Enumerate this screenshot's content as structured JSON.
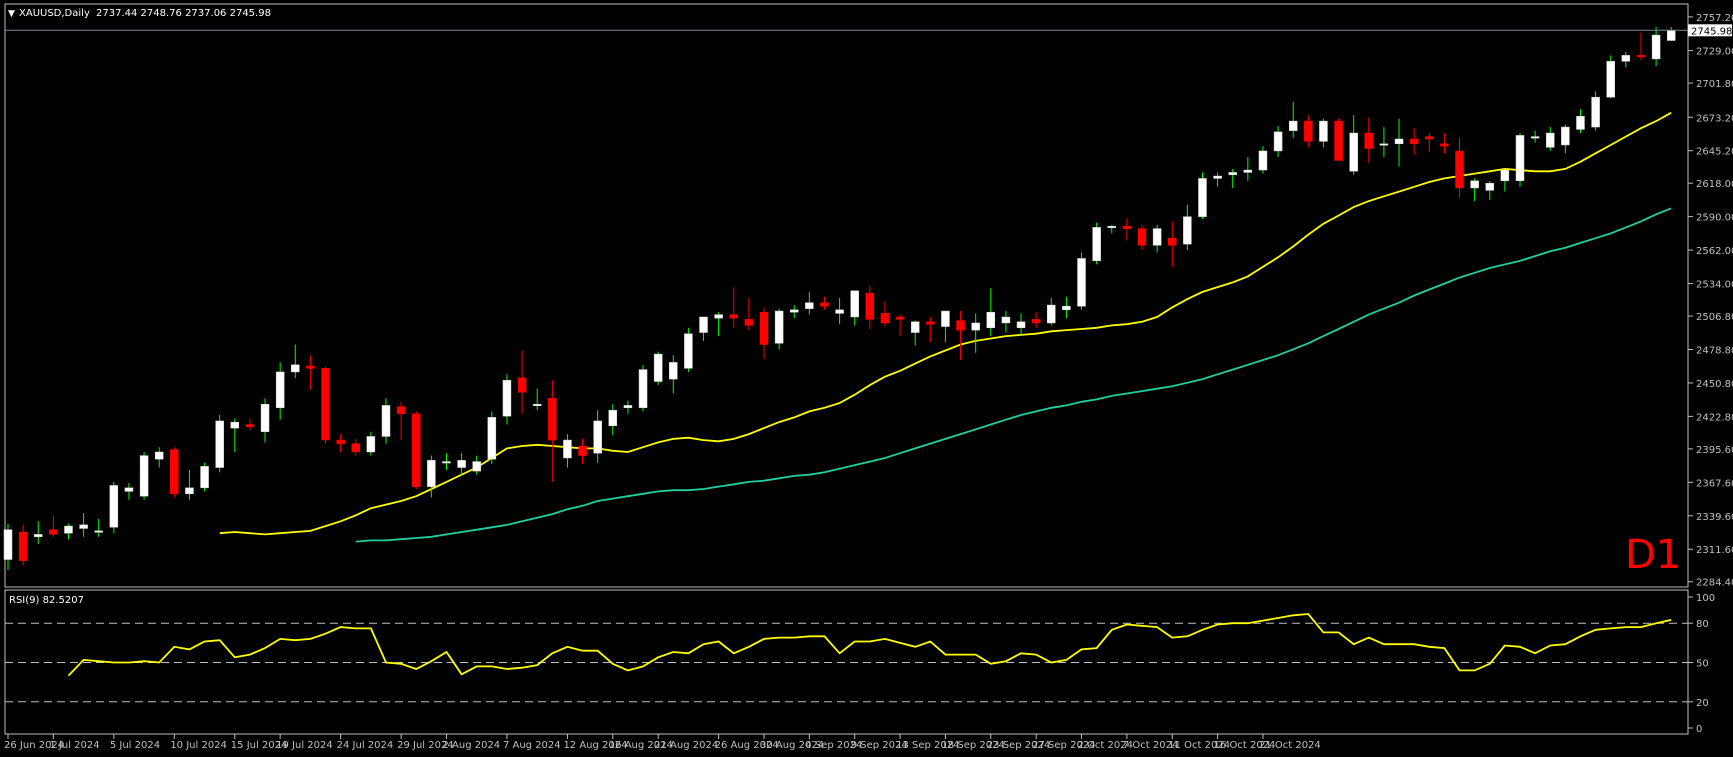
{
  "header": {
    "symbol": "XAUUSD,Daily",
    "ohlc": "2737.44 2748.76 2737.06 2745.98"
  },
  "timeframe_badge": "D1",
  "colors": {
    "background": "#000000",
    "grid": "#1a1a1a",
    "axis": "#c0c0c0",
    "bull_candle": "#ffffff",
    "bear_candle": "#ff0000",
    "bull_wick": "#00ff00",
    "bear_wick": "#ff0000",
    "ma_fast": "#ffff00",
    "ma_slow": "#20d0a0",
    "rsi_line": "#ffff00",
    "badge": "#ff0000"
  },
  "price_axis": {
    "ticks": [
      "2757.20",
      "2729.00",
      "2701.80",
      "2673.20",
      "2645.20",
      "2618.00",
      "2590.00",
      "2562.00",
      "2534.00",
      "2506.80",
      "2478.80",
      "2450.80",
      "2422.80",
      "2395.60",
      "2367.60",
      "2339.60",
      "2311.60",
      "2284.40"
    ],
    "current_label": "2745.98",
    "current_value": 2745.98
  },
  "rsi": {
    "label": "RSI(9) 82.5207",
    "ticks": [
      "100",
      "80",
      "50",
      "20",
      "0"
    ],
    "levels": [
      80,
      50,
      20
    ]
  },
  "time_axis": {
    "labels": [
      "26 Jun 2024",
      "1 Jul 2024",
      "5 Jul 2024",
      "10 Jul 2024",
      "15 Jul 2024",
      "19 Jul 2024",
      "24 Jul 2024",
      "29 Jul 2024",
      "2 Aug 2024",
      "7 Aug 2024",
      "12 Aug 2024",
      "16 Aug 2024",
      "21 Aug 2024",
      "26 Aug 2024",
      "30 Aug 2024",
      "4 Sep 2024",
      "9 Sep 2024",
      "13 Sep 2024",
      "18 Sep 2024",
      "23 Sep 2024",
      "27 Sep 2024",
      "2 Oct 2024",
      "7 Oct 2024",
      "11 Oct 2024",
      "16 Oct 2024",
      "21 Oct 2024"
    ],
    "label_bar_index": [
      0,
      3,
      7,
      11,
      15,
      18,
      22,
      26,
      29,
      33,
      37,
      40,
      43,
      47,
      50,
      53,
      56,
      59,
      62,
      65,
      68,
      71,
      74,
      77,
      80,
      83
    ]
  },
  "chart_data": {
    "type": "candlestick",
    "symbol": "XAUUSD",
    "timeframe": "Daily",
    "ylim": [
      2280,
      2768
    ],
    "candles": [
      {
        "o": 2303,
        "h": 2333,
        "l": 2294,
        "c": 2328
      },
      {
        "o": 2326,
        "h": 2332,
        "l": 2298,
        "c": 2302
      },
      {
        "o": 2322,
        "h": 2335,
        "l": 2316,
        "c": 2324
      },
      {
        "o": 2328,
        "h": 2340,
        "l": 2322,
        "c": 2324
      },
      {
        "o": 2325,
        "h": 2333,
        "l": 2320,
        "c": 2331
      },
      {
        "o": 2329,
        "h": 2342,
        "l": 2322,
        "c": 2332
      },
      {
        "o": 2326,
        "h": 2337,
        "l": 2322,
        "c": 2327
      },
      {
        "o": 2330,
        "h": 2368,
        "l": 2325,
        "c": 2365
      },
      {
        "o": 2360,
        "h": 2367,
        "l": 2353,
        "c": 2363
      },
      {
        "o": 2356,
        "h": 2393,
        "l": 2353,
        "c": 2390
      },
      {
        "o": 2387,
        "h": 2397,
        "l": 2380,
        "c": 2393
      },
      {
        "o": 2395,
        "h": 2397,
        "l": 2355,
        "c": 2358
      },
      {
        "o": 2358,
        "h": 2378,
        "l": 2353,
        "c": 2363
      },
      {
        "o": 2363,
        "h": 2384,
        "l": 2360,
        "c": 2381
      },
      {
        "o": 2380,
        "h": 2424,
        "l": 2376,
        "c": 2419
      },
      {
        "o": 2413,
        "h": 2421,
        "l": 2393,
        "c": 2418
      },
      {
        "o": 2416,
        "h": 2421,
        "l": 2411,
        "c": 2414
      },
      {
        "o": 2410,
        "h": 2438,
        "l": 2401,
        "c": 2433
      },
      {
        "o": 2430,
        "h": 2468,
        "l": 2420,
        "c": 2460
      },
      {
        "o": 2460,
        "h": 2483,
        "l": 2455,
        "c": 2466
      },
      {
        "o": 2465,
        "h": 2474,
        "l": 2445,
        "c": 2463
      },
      {
        "o": 2463,
        "h": 2464,
        "l": 2400,
        "c": 2403
      },
      {
        "o": 2403,
        "h": 2408,
        "l": 2393,
        "c": 2400
      },
      {
        "o": 2400,
        "h": 2404,
        "l": 2390,
        "c": 2393
      },
      {
        "o": 2393,
        "h": 2410,
        "l": 2390,
        "c": 2406
      },
      {
        "o": 2406,
        "h": 2438,
        "l": 2400,
        "c": 2432
      },
      {
        "o": 2431,
        "h": 2435,
        "l": 2403,
        "c": 2425
      },
      {
        "o": 2425,
        "h": 2427,
        "l": 2362,
        "c": 2364
      },
      {
        "o": 2364,
        "h": 2390,
        "l": 2355,
        "c": 2386
      },
      {
        "o": 2385,
        "h": 2392,
        "l": 2378,
        "c": 2385
      },
      {
        "o": 2380,
        "h": 2392,
        "l": 2373,
        "c": 2386
      },
      {
        "o": 2377,
        "h": 2390,
        "l": 2374,
        "c": 2385
      },
      {
        "o": 2387,
        "h": 2427,
        "l": 2383,
        "c": 2422
      },
      {
        "o": 2423,
        "h": 2458,
        "l": 2416,
        "c": 2453
      },
      {
        "o": 2455,
        "h": 2478,
        "l": 2425,
        "c": 2443
      },
      {
        "o": 2432,
        "h": 2446,
        "l": 2428,
        "c": 2433
      },
      {
        "o": 2438,
        "h": 2453,
        "l": 2368,
        "c": 2403
      },
      {
        "o": 2388,
        "h": 2408,
        "l": 2380,
        "c": 2403
      },
      {
        "o": 2398,
        "h": 2404,
        "l": 2383,
        "c": 2390
      },
      {
        "o": 2392,
        "h": 2428,
        "l": 2384,
        "c": 2419
      },
      {
        "o": 2415,
        "h": 2433,
        "l": 2407,
        "c": 2428
      },
      {
        "o": 2430,
        "h": 2436,
        "l": 2425,
        "c": 2432
      },
      {
        "o": 2430,
        "h": 2466,
        "l": 2427,
        "c": 2462
      },
      {
        "o": 2452,
        "h": 2477,
        "l": 2449,
        "c": 2475
      },
      {
        "o": 2454,
        "h": 2474,
        "l": 2442,
        "c": 2468
      },
      {
        "o": 2463,
        "h": 2497,
        "l": 2460,
        "c": 2492
      },
      {
        "o": 2493,
        "h": 2506,
        "l": 2486,
        "c": 2506
      },
      {
        "o": 2505,
        "h": 2510,
        "l": 2490,
        "c": 2508
      },
      {
        "o": 2508,
        "h": 2531,
        "l": 2497,
        "c": 2505
      },
      {
        "o": 2504,
        "h": 2522,
        "l": 2495,
        "c": 2499
      },
      {
        "o": 2510,
        "h": 2514,
        "l": 2471,
        "c": 2483
      },
      {
        "o": 2484,
        "h": 2513,
        "l": 2479,
        "c": 2511
      },
      {
        "o": 2510,
        "h": 2516,
        "l": 2505,
        "c": 2512
      },
      {
        "o": 2513,
        "h": 2527,
        "l": 2508,
        "c": 2518
      },
      {
        "o": 2518,
        "h": 2523,
        "l": 2512,
        "c": 2515
      },
      {
        "o": 2509,
        "h": 2522,
        "l": 2500,
        "c": 2512
      },
      {
        "o": 2506,
        "h": 2524,
        "l": 2499,
        "c": 2528
      },
      {
        "o": 2526,
        "h": 2532,
        "l": 2496,
        "c": 2504
      },
      {
        "o": 2509,
        "h": 2519,
        "l": 2498,
        "c": 2501
      },
      {
        "o": 2506,
        "h": 2508,
        "l": 2490,
        "c": 2504
      },
      {
        "o": 2493,
        "h": 2503,
        "l": 2482,
        "c": 2502
      },
      {
        "o": 2502,
        "h": 2506,
        "l": 2485,
        "c": 2500
      },
      {
        "o": 2498,
        "h": 2511,
        "l": 2485,
        "c": 2511
      },
      {
        "o": 2503,
        "h": 2511,
        "l": 2470,
        "c": 2495
      },
      {
        "o": 2495,
        "h": 2509,
        "l": 2476,
        "c": 2501
      },
      {
        "o": 2497,
        "h": 2530,
        "l": 2490,
        "c": 2510
      },
      {
        "o": 2501,
        "h": 2511,
        "l": 2493,
        "c": 2506
      },
      {
        "o": 2497,
        "h": 2509,
        "l": 2491,
        "c": 2502
      },
      {
        "o": 2504,
        "h": 2510,
        "l": 2497,
        "c": 2501
      },
      {
        "o": 2501,
        "h": 2522,
        "l": 2499,
        "c": 2516
      },
      {
        "o": 2512,
        "h": 2523,
        "l": 2505,
        "c": 2515
      },
      {
        "o": 2515,
        "h": 2560,
        "l": 2512,
        "c": 2555
      },
      {
        "o": 2553,
        "h": 2585,
        "l": 2550,
        "c": 2581
      },
      {
        "o": 2581,
        "h": 2583,
        "l": 2576,
        "c": 2582
      },
      {
        "o": 2582,
        "h": 2589,
        "l": 2570,
        "c": 2580
      },
      {
        "o": 2580,
        "h": 2583,
        "l": 2562,
        "c": 2566
      },
      {
        "o": 2566,
        "h": 2583,
        "l": 2560,
        "c": 2580
      },
      {
        "o": 2572,
        "h": 2586,
        "l": 2548,
        "c": 2566
      },
      {
        "o": 2567,
        "h": 2600,
        "l": 2562,
        "c": 2590
      },
      {
        "o": 2590,
        "h": 2627,
        "l": 2588,
        "c": 2622
      },
      {
        "o": 2622,
        "h": 2627,
        "l": 2615,
        "c": 2624
      },
      {
        "o": 2625,
        "h": 2630,
        "l": 2614,
        "c": 2627
      },
      {
        "o": 2627,
        "h": 2640,
        "l": 2620,
        "c": 2629
      },
      {
        "o": 2629,
        "h": 2649,
        "l": 2626,
        "c": 2645
      },
      {
        "o": 2645,
        "h": 2666,
        "l": 2640,
        "c": 2661
      },
      {
        "o": 2662,
        "h": 2686,
        "l": 2656,
        "c": 2670
      },
      {
        "o": 2670,
        "h": 2675,
        "l": 2648,
        "c": 2653
      },
      {
        "o": 2653,
        "h": 2672,
        "l": 2648,
        "c": 2670
      },
      {
        "o": 2670,
        "h": 2672,
        "l": 2638,
        "c": 2637
      },
      {
        "o": 2628,
        "h": 2675,
        "l": 2625,
        "c": 2660
      },
      {
        "o": 2660,
        "h": 2673,
        "l": 2635,
        "c": 2647
      },
      {
        "o": 2650,
        "h": 2665,
        "l": 2640,
        "c": 2651
      },
      {
        "o": 2651,
        "h": 2672,
        "l": 2632,
        "c": 2655
      },
      {
        "o": 2655,
        "h": 2664,
        "l": 2642,
        "c": 2651
      },
      {
        "o": 2657,
        "h": 2660,
        "l": 2644,
        "c": 2655
      },
      {
        "o": 2651,
        "h": 2660,
        "l": 2643,
        "c": 2649
      },
      {
        "o": 2645,
        "h": 2656,
        "l": 2606,
        "c": 2614
      },
      {
        "o": 2614,
        "h": 2622,
        "l": 2603,
        "c": 2620
      },
      {
        "o": 2612,
        "h": 2620,
        "l": 2604,
        "c": 2618
      },
      {
        "o": 2620,
        "h": 2628,
        "l": 2611,
        "c": 2629
      },
      {
        "o": 2620,
        "h": 2660,
        "l": 2615,
        "c": 2658
      },
      {
        "o": 2657,
        "h": 2662,
        "l": 2652,
        "c": 2657
      },
      {
        "o": 2648,
        "h": 2665,
        "l": 2645,
        "c": 2660
      },
      {
        "o": 2650,
        "h": 2667,
        "l": 2643,
        "c": 2665
      },
      {
        "o": 2663,
        "h": 2680,
        "l": 2660,
        "c": 2674
      },
      {
        "o": 2665,
        "h": 2695,
        "l": 2662,
        "c": 2690
      },
      {
        "o": 2690,
        "h": 2725,
        "l": 2689,
        "c": 2720
      },
      {
        "o": 2720,
        "h": 2728,
        "l": 2715,
        "c": 2725
      },
      {
        "o": 2725,
        "h": 2744,
        "l": 2721,
        "c": 2724
      },
      {
        "o": 2722,
        "h": 2749,
        "l": 2716,
        "c": 2742
      },
      {
        "o": 2737.44,
        "h": 2748.76,
        "l": 2737.06,
        "c": 2745.98
      }
    ],
    "ma_fast": [
      2325,
      2326,
      2325,
      2324,
      2325,
      2326,
      2327,
      2331,
      2335,
      2340,
      2346,
      2349,
      2352,
      2356,
      2362,
      2368,
      2374,
      2380,
      2388,
      2396,
      2398,
      2399,
      2398,
      2397,
      2396,
      2396,
      2394,
      2393,
      2397,
      2401,
      2404,
      2405,
      2403,
      2402,
      2404,
      2408,
      2413,
      2418,
      2422,
      2427,
      2430,
      2434,
      2441,
      2449,
      2456,
      2461,
      2467,
      2473,
      2478,
      2483,
      2486,
      2488,
      2490,
      2491,
      2492,
      2494,
      2495,
      2496,
      2497,
      2499,
      2500,
      2502,
      2506,
      2514,
      2521,
      2527,
      2531,
      2535,
      2540,
      2548,
      2556,
      2565,
      2575,
      2584,
      2591,
      2598,
      2603,
      2607,
      2611,
      2615,
      2619,
      2622,
      2624,
      2626,
      2628,
      2630,
      2629,
      2628,
      2628,
      2630,
      2636,
      2643,
      2650,
      2657,
      2664,
      2670,
      2677
    ],
    "ma_slow": [
      2318,
      2319,
      2319,
      2320,
      2321,
      2322,
      2324,
      2326,
      2328,
      2330,
      2332,
      2335,
      2338,
      2341,
      2345,
      2348,
      2352,
      2354,
      2356,
      2358,
      2360,
      2361,
      2361,
      2362,
      2364,
      2366,
      2368,
      2369,
      2371,
      2373,
      2374,
      2376,
      2379,
      2382,
      2385,
      2388,
      2392,
      2396,
      2400,
      2404,
      2408,
      2412,
      2416,
      2420,
      2424,
      2427,
      2430,
      2432,
      2435,
      2437,
      2440,
      2442,
      2444,
      2446,
      2448,
      2451,
      2454,
      2458,
      2462,
      2466,
      2470,
      2474,
      2479,
      2484,
      2490,
      2496,
      2502,
      2508,
      2513,
      2518,
      2524,
      2529,
      2534,
      2539,
      2543,
      2547,
      2550,
      2553,
      2557,
      2561,
      2564,
      2568,
      2572,
      2576,
      2581,
      2586,
      2592,
      2597
    ],
    "rsi_values": [
      40,
      52,
      51,
      50,
      50,
      51,
      50,
      62,
      60,
      66,
      67,
      54,
      56,
      61,
      68,
      67,
      68,
      72,
      77,
      76,
      76,
      50,
      49,
      45,
      51,
      58,
      41,
      47,
      47,
      45,
      46,
      48,
      57,
      62,
      59,
      59,
      49,
      44,
      47,
      54,
      58,
      57,
      64,
      66,
      57,
      62,
      68,
      69,
      69,
      70,
      70,
      57,
      66,
      66,
      68,
      65,
      62,
      66,
      56,
      56,
      56,
      49,
      51,
      57,
      56,
      50,
      52,
      60,
      61,
      75,
      79,
      78,
      77,
      69,
      70,
      75,
      79,
      80,
      80,
      82,
      84,
      86,
      87,
      73,
      73,
      64,
      69,
      64,
      64,
      64,
      62,
      61,
      44,
      44,
      49,
      63,
      62,
      57,
      63,
      64,
      70,
      75,
      76,
      77,
      77,
      80,
      82.52
    ]
  }
}
